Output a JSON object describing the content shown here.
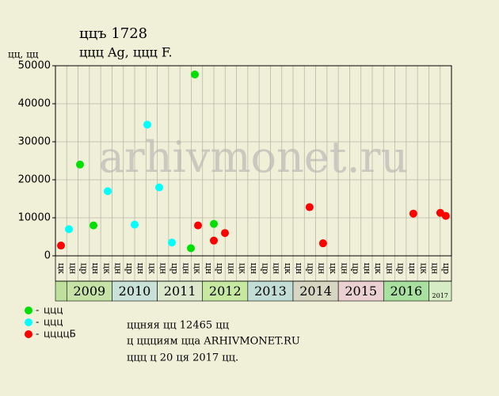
{
  "chart_data": {
    "type": "scatter",
    "title": "ццъ 1728",
    "subtitle": "ццц Ag, ццц F.",
    "y_label": "цц, цц",
    "watermark": "arhivmonet.ru",
    "notes": [
      "ццняя цц 12465 цц",
      "ц ццциям цца ARHIVMONET.RU",
      "ццц ц 20 ця 2017 цц."
    ],
    "ylim": [
      0,
      50000
    ],
    "yticks": [
      0,
      10000,
      20000,
      30000,
      40000,
      50000
    ],
    "xlim": [
      0,
      35
    ],
    "grid": true,
    "columns": [
      "цк",
      "цн",
      "цр",
      "цн",
      "цк",
      "цн",
      "цр",
      "цн",
      "цк",
      "цн",
      "цр",
      "цн",
      "цк",
      "цн",
      "цр",
      "цн",
      "цк",
      "цн",
      "цр",
      "цн",
      "цк",
      "цн",
      "цр",
      "цн",
      "цк",
      "цн",
      "цр",
      "цн",
      "цк",
      "цн",
      "цр",
      "цн",
      "цк",
      "цн",
      "цр"
    ],
    "years": [
      "2009",
      "2010",
      "2011",
      "2012",
      "2013",
      "2014",
      "2015",
      "2016",
      "2017"
    ],
    "year_colors": [
      "#c6e2a6",
      "#c8e2da",
      "#dce8cc",
      "#c6e8a0",
      "#c2dcd6",
      "#d6d6c2",
      "#ead0d0",
      "#a8e0a0",
      "#d6ecc4"
    ],
    "series": [
      {
        "name": "ццц",
        "color": "#00e000",
        "x": [
          2.17,
          3.36,
          11.97,
          12.32,
          14.0
        ],
        "values": [
          24000,
          8000,
          2000,
          47700,
          8400
        ]
      },
      {
        "name": "ццц",
        "color": "#00ffff",
        "x": [
          1.19,
          4.62,
          7.0,
          8.12,
          9.17,
          10.29
        ],
        "values": [
          7000,
          17000,
          8200,
          34500,
          18000,
          3500
        ]
      },
      {
        "name": "ццццБ",
        "color": "#ff0000",
        "x": [
          0.49,
          12.6,
          14.0,
          14.98,
          22.46,
          23.65,
          31.63,
          34.01,
          34.5
        ],
        "values": [
          2700,
          8000,
          4000,
          6000,
          12800,
          3300,
          11100,
          11300,
          10500
        ]
      }
    ]
  }
}
